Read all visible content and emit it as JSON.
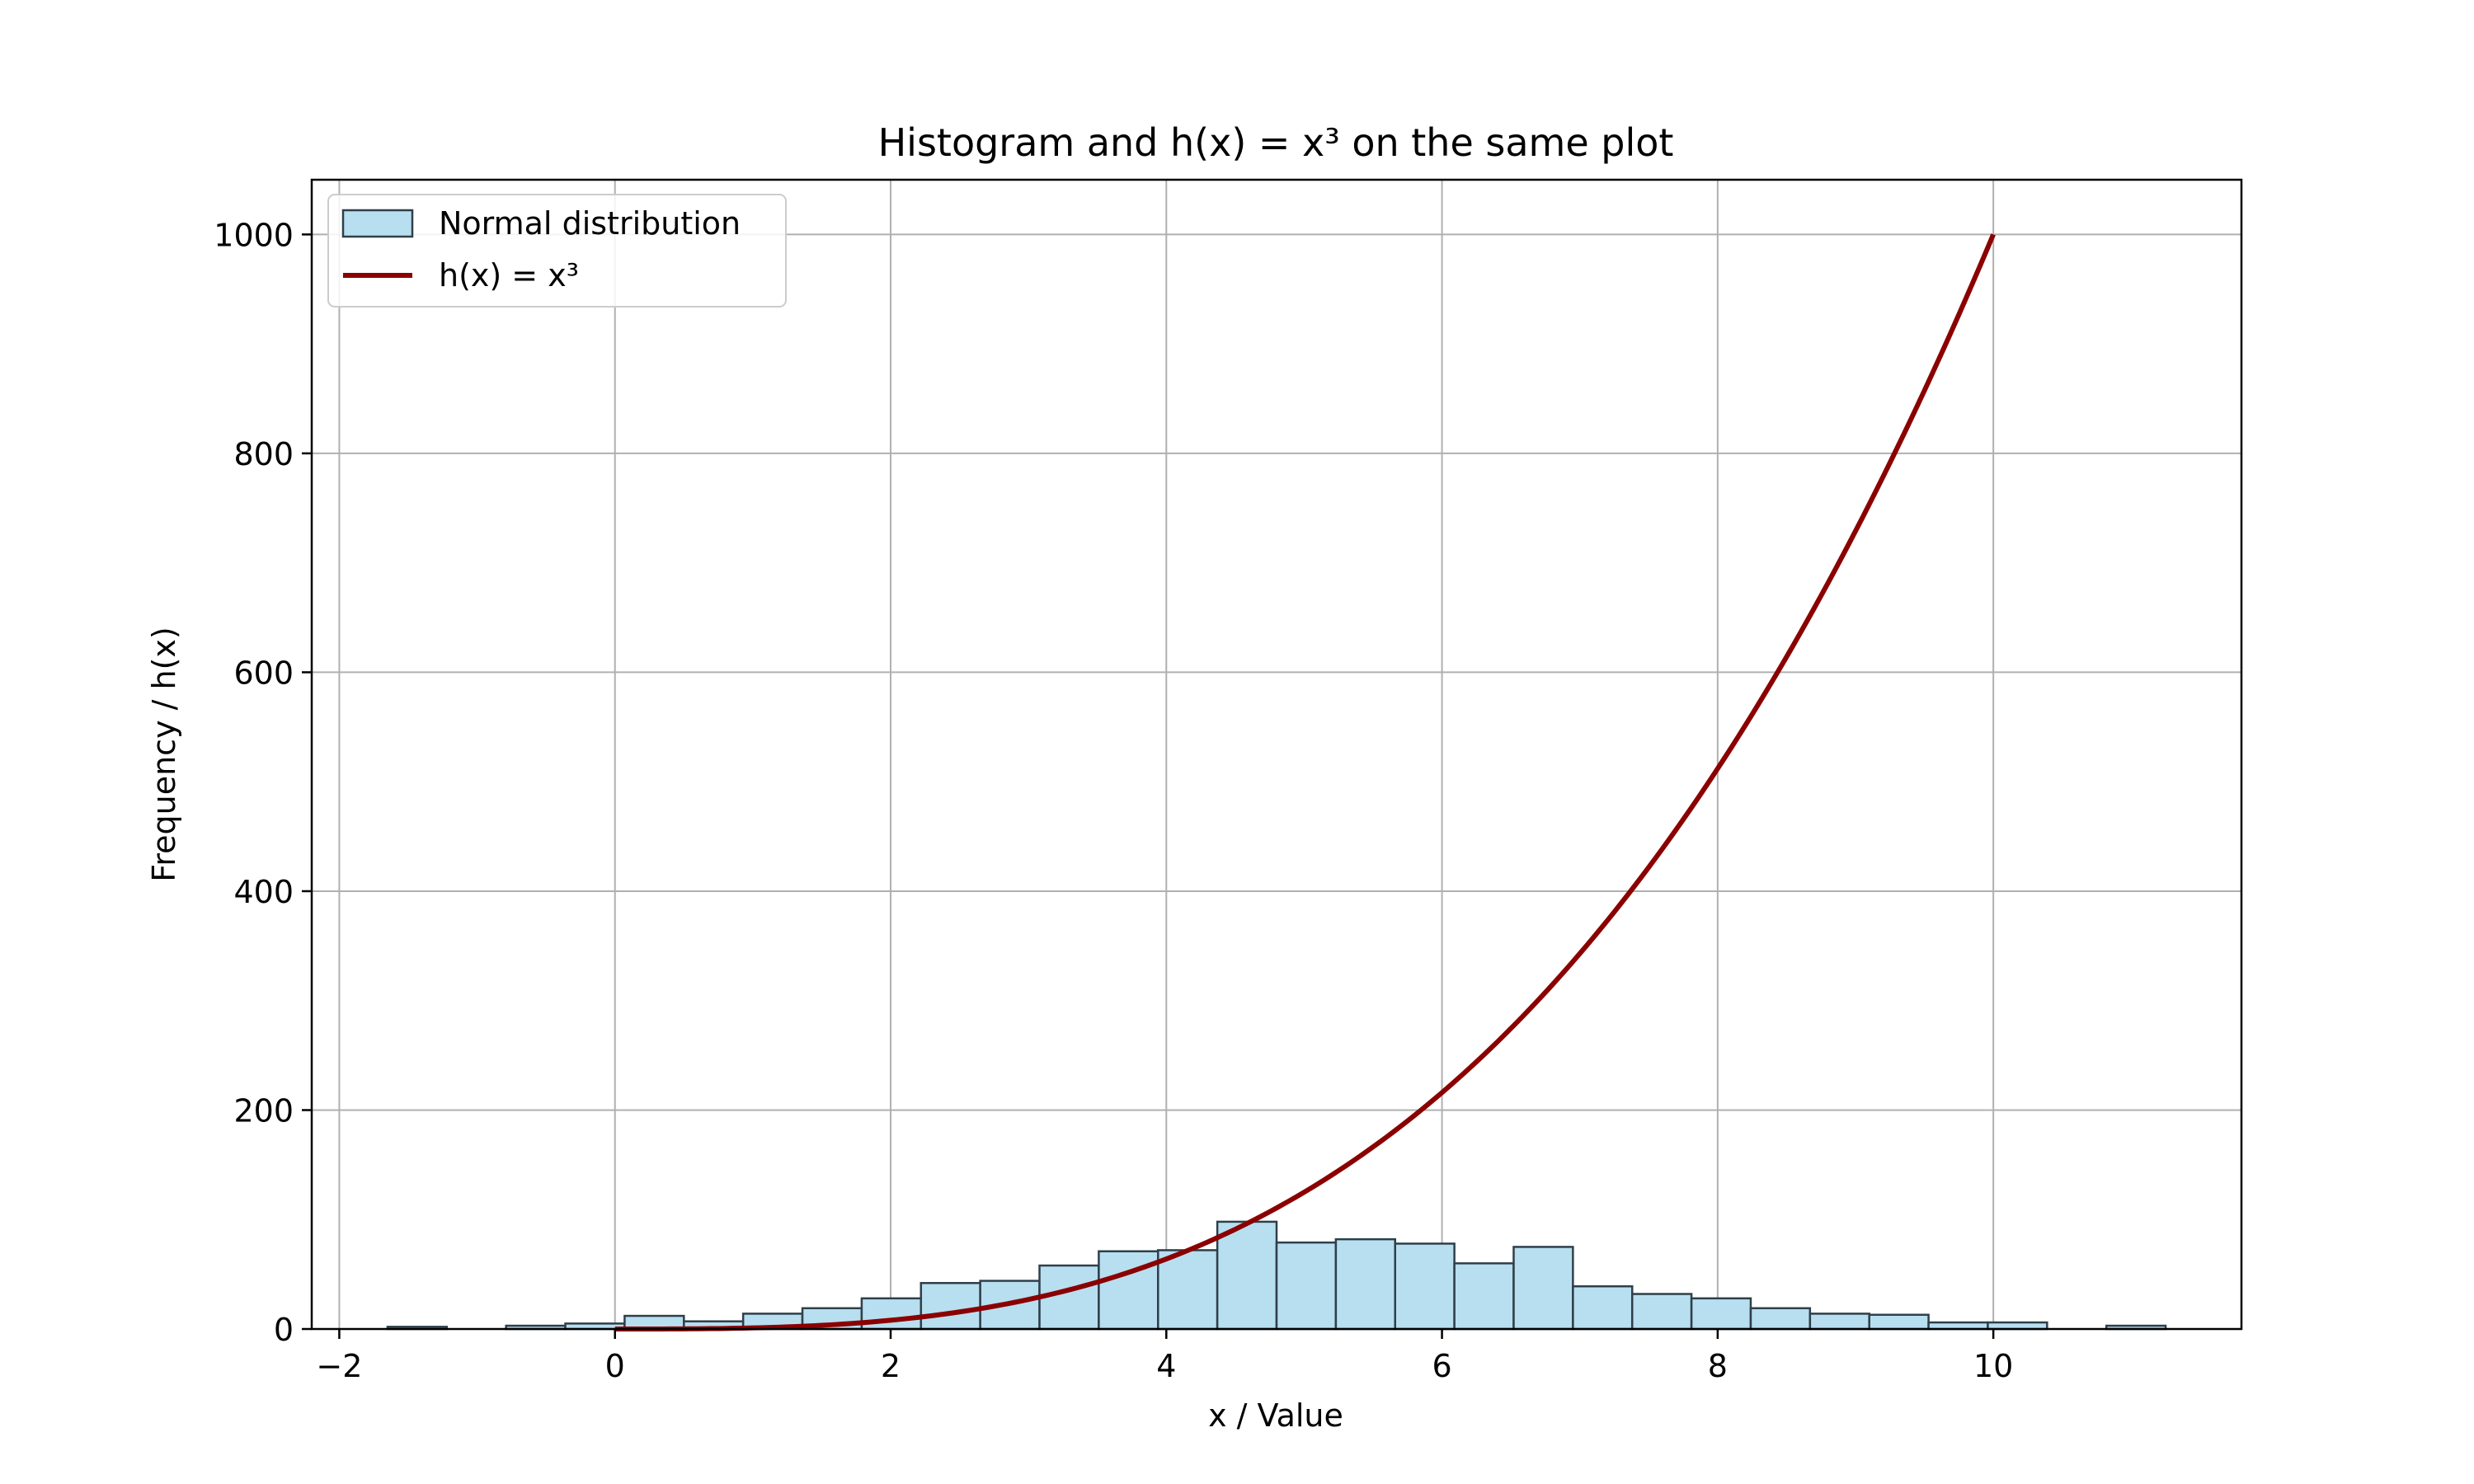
{
  "chart_data": {
    "type": "bar+line",
    "title": "Histogram and h(x) = x³ on the same plot",
    "xlabel": "x / Value",
    "ylabel": "Frequency / h(x)",
    "xlim": [
      -2.2,
      11.8
    ],
    "ylim": [
      0,
      1050
    ],
    "xticks": [
      {
        "value": -2,
        "label": "−2"
      },
      {
        "value": 0,
        "label": "0"
      },
      {
        "value": 2,
        "label": "2"
      },
      {
        "value": 4,
        "label": "4"
      },
      {
        "value": 6,
        "label": "6"
      },
      {
        "value": 8,
        "label": "8"
      },
      {
        "value": 10,
        "label": "10"
      }
    ],
    "yticks": [
      {
        "value": 0,
        "label": "0"
      },
      {
        "value": 200,
        "label": "200"
      },
      {
        "value": 400,
        "label": "400"
      },
      {
        "value": 600,
        "label": "600"
      },
      {
        "value": 800,
        "label": "800"
      },
      {
        "value": 1000,
        "label": "1000"
      }
    ],
    "grid": true,
    "legend_position": "top-left",
    "histogram": {
      "name": "Normal distribution",
      "fill_color": "#b7dff0",
      "edge_color": "#2f3f4a",
      "bins": [
        {
          "x0": -1.65,
          "x1": -1.22,
          "count": 2
        },
        {
          "x0": -1.22,
          "x1": -0.79,
          "count": 0
        },
        {
          "x0": -0.79,
          "x1": -0.36,
          "count": 3
        },
        {
          "x0": -0.36,
          "x1": 0.07,
          "count": 5
        },
        {
          "x0": 0.07,
          "x1": 0.5,
          "count": 12
        },
        {
          "x0": 0.5,
          "x1": 0.93,
          "count": 7
        },
        {
          "x0": 0.93,
          "x1": 1.36,
          "count": 14
        },
        {
          "x0": 1.36,
          "x1": 1.79,
          "count": 19
        },
        {
          "x0": 1.79,
          "x1": 2.22,
          "count": 28
        },
        {
          "x0": 2.22,
          "x1": 2.65,
          "count": 42
        },
        {
          "x0": 2.65,
          "x1": 3.08,
          "count": 44
        },
        {
          "x0": 3.08,
          "x1": 3.51,
          "count": 58
        },
        {
          "x0": 3.51,
          "x1": 3.94,
          "count": 71
        },
        {
          "x0": 3.94,
          "x1": 4.37,
          "count": 72
        },
        {
          "x0": 4.37,
          "x1": 4.8,
          "count": 98
        },
        {
          "x0": 4.8,
          "x1": 5.23,
          "count": 79
        },
        {
          "x0": 5.23,
          "x1": 5.66,
          "count": 82
        },
        {
          "x0": 5.66,
          "x1": 6.09,
          "count": 78
        },
        {
          "x0": 6.09,
          "x1": 6.52,
          "count": 60
        },
        {
          "x0": 6.52,
          "x1": 6.95,
          "count": 75
        },
        {
          "x0": 6.95,
          "x1": 7.38,
          "count": 39
        },
        {
          "x0": 7.38,
          "x1": 7.81,
          "count": 32
        },
        {
          "x0": 7.81,
          "x1": 8.24,
          "count": 28
        },
        {
          "x0": 8.24,
          "x1": 8.67,
          "count": 19
        },
        {
          "x0": 8.67,
          "x1": 9.1,
          "count": 14
        },
        {
          "x0": 9.1,
          "x1": 9.53,
          "count": 13
        },
        {
          "x0": 9.53,
          "x1": 9.96,
          "count": 6
        },
        {
          "x0": 9.96,
          "x1": 10.39,
          "count": 6
        },
        {
          "x0": 10.39,
          "x1": 10.82,
          "count": 0
        },
        {
          "x0": 10.82,
          "x1": 11.25,
          "count": 3
        }
      ]
    },
    "line": {
      "name": "h(x) = x³",
      "function": "x^3",
      "x_range": [
        0,
        10
      ],
      "color": "#8b0000"
    }
  }
}
